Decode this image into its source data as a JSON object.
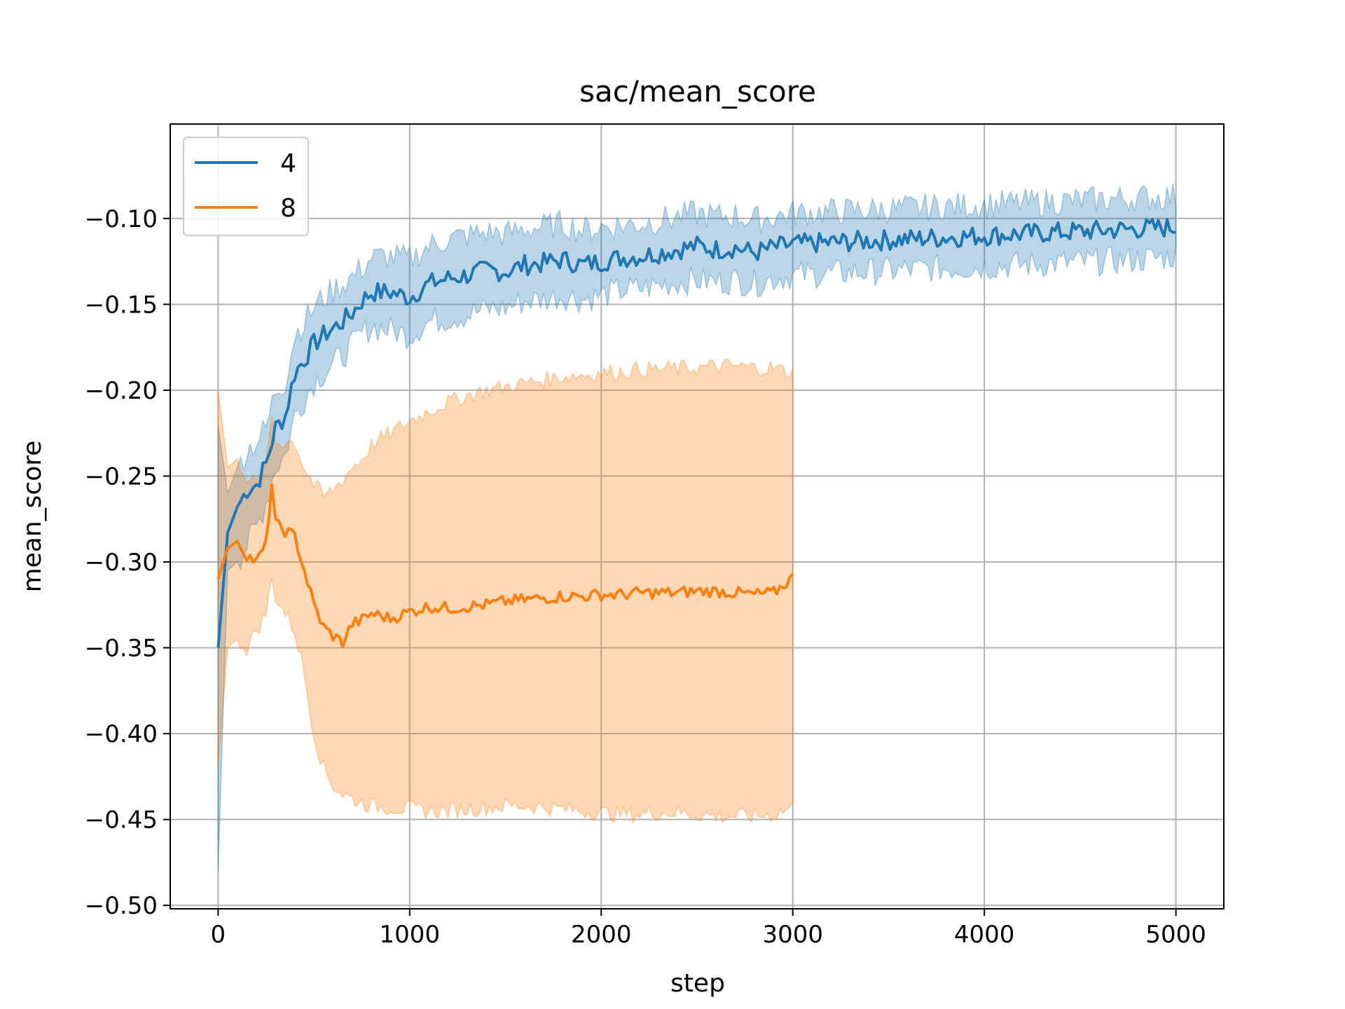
{
  "chart_data": {
    "type": "line",
    "title": "sac/mean_score",
    "xlabel": "step",
    "ylabel": "mean_score",
    "xlim": [
      -250,
      5250
    ],
    "ylim": [
      -0.502,
      -0.045
    ],
    "xticks": [
      0,
      1000,
      2000,
      3000,
      4000,
      5000
    ],
    "xtick_labels": [
      "0",
      "1000",
      "2000",
      "3000",
      "4000",
      "5000"
    ],
    "yticks": [
      -0.5,
      -0.45,
      -0.4,
      -0.35,
      -0.3,
      -0.25,
      -0.2,
      -0.15,
      -0.1
    ],
    "ytick_labels": [
      "−0.50",
      "−0.45",
      "−0.40",
      "−0.35",
      "−0.30",
      "−0.25",
      "−0.20",
      "−0.15",
      "−0.10"
    ],
    "grid": true,
    "legend_position": "top-left",
    "series": [
      {
        "name": "4",
        "color": "#1f77b4",
        "x": [
          0,
          50,
          100,
          150,
          200,
          250,
          300,
          350,
          400,
          450,
          500,
          550,
          600,
          650,
          700,
          750,
          800,
          900,
          1000,
          1100,
          1200,
          1300,
          1400,
          1500,
          1600,
          1700,
          1800,
          1900,
          2000,
          2100,
          2200,
          2300,
          2400,
          2500,
          2600,
          2700,
          2800,
          2900,
          3000,
          3200,
          3400,
          3600,
          3800,
          4000,
          4200,
          4400,
          4600,
          4800,
          5000
        ],
        "mean": [
          -0.35,
          -0.283,
          -0.268,
          -0.258,
          -0.255,
          -0.243,
          -0.222,
          -0.215,
          -0.19,
          -0.182,
          -0.173,
          -0.168,
          -0.164,
          -0.16,
          -0.155,
          -0.148,
          -0.143,
          -0.143,
          -0.146,
          -0.138,
          -0.135,
          -0.133,
          -0.13,
          -0.131,
          -0.127,
          -0.126,
          -0.124,
          -0.127,
          -0.125,
          -0.123,
          -0.122,
          -0.12,
          -0.118,
          -0.116,
          -0.118,
          -0.117,
          -0.12,
          -0.117,
          -0.115,
          -0.114,
          -0.113,
          -0.112,
          -0.111,
          -0.11,
          -0.109,
          -0.108,
          -0.107,
          -0.106,
          -0.105
        ],
        "lower": [
          -0.48,
          -0.305,
          -0.3,
          -0.29,
          -0.28,
          -0.265,
          -0.245,
          -0.238,
          -0.215,
          -0.205,
          -0.195,
          -0.19,
          -0.185,
          -0.18,
          -0.174,
          -0.167,
          -0.163,
          -0.165,
          -0.168,
          -0.16,
          -0.158,
          -0.156,
          -0.153,
          -0.152,
          -0.148,
          -0.147,
          -0.145,
          -0.147,
          -0.145,
          -0.142,
          -0.141,
          -0.139,
          -0.137,
          -0.136,
          -0.137,
          -0.136,
          -0.138,
          -0.135,
          -0.133,
          -0.132,
          -0.131,
          -0.13,
          -0.129,
          -0.128,
          -0.127,
          -0.126,
          -0.125,
          -0.124,
          -0.122
        ],
        "upper": [
          -0.22,
          -0.26,
          -0.245,
          -0.235,
          -0.23,
          -0.222,
          -0.2,
          -0.195,
          -0.168,
          -0.16,
          -0.152,
          -0.146,
          -0.142,
          -0.138,
          -0.134,
          -0.129,
          -0.123,
          -0.122,
          -0.124,
          -0.116,
          -0.112,
          -0.11,
          -0.108,
          -0.109,
          -0.106,
          -0.105,
          -0.103,
          -0.107,
          -0.105,
          -0.104,
          -0.103,
          -0.101,
          -0.099,
          -0.097,
          -0.099,
          -0.098,
          -0.101,
          -0.099,
          -0.097,
          -0.096,
          -0.095,
          -0.094,
          -0.093,
          -0.092,
          -0.091,
          -0.09,
          -0.089,
          -0.088,
          -0.087
        ]
      },
      {
        "name": "8",
        "color": "#ff7f0e",
        "x": [
          0,
          50,
          100,
          150,
          200,
          250,
          280,
          300,
          350,
          400,
          450,
          500,
          550,
          600,
          650,
          700,
          750,
          800,
          900,
          1000,
          1100,
          1200,
          1300,
          1400,
          1500,
          1600,
          1700,
          1800,
          1900,
          2000,
          2100,
          2200,
          2300,
          2400,
          2500,
          2600,
          2700,
          2800,
          2900,
          3000
        ],
        "mean": [
          -0.31,
          -0.292,
          -0.288,
          -0.296,
          -0.3,
          -0.29,
          -0.255,
          -0.278,
          -0.282,
          -0.285,
          -0.305,
          -0.325,
          -0.338,
          -0.343,
          -0.347,
          -0.336,
          -0.334,
          -0.33,
          -0.333,
          -0.329,
          -0.326,
          -0.327,
          -0.326,
          -0.325,
          -0.323,
          -0.322,
          -0.321,
          -0.32,
          -0.32,
          -0.319,
          -0.319,
          -0.318,
          -0.318,
          -0.318,
          -0.317,
          -0.317,
          -0.318,
          -0.319,
          -0.318,
          -0.309
        ],
        "lower": [
          -0.42,
          -0.35,
          -0.345,
          -0.35,
          -0.34,
          -0.33,
          -0.31,
          -0.32,
          -0.33,
          -0.34,
          -0.365,
          -0.4,
          -0.42,
          -0.43,
          -0.435,
          -0.438,
          -0.44,
          -0.442,
          -0.443,
          -0.444,
          -0.445,
          -0.445,
          -0.444,
          -0.443,
          -0.442,
          -0.442,
          -0.443,
          -0.444,
          -0.445,
          -0.446,
          -0.447,
          -0.447,
          -0.446,
          -0.446,
          -0.447,
          -0.448,
          -0.448,
          -0.448,
          -0.447,
          -0.443
        ],
        "upper": [
          -0.2,
          -0.245,
          -0.24,
          -0.25,
          -0.255,
          -0.245,
          -0.215,
          -0.23,
          -0.23,
          -0.23,
          -0.245,
          -0.255,
          -0.262,
          -0.258,
          -0.252,
          -0.245,
          -0.24,
          -0.232,
          -0.225,
          -0.218,
          -0.212,
          -0.207,
          -0.203,
          -0.2,
          -0.198,
          -0.196,
          -0.194,
          -0.192,
          -0.191,
          -0.19,
          -0.189,
          -0.188,
          -0.188,
          -0.187,
          -0.187,
          -0.186,
          -0.186,
          -0.187,
          -0.187,
          -0.19
        ]
      }
    ]
  }
}
